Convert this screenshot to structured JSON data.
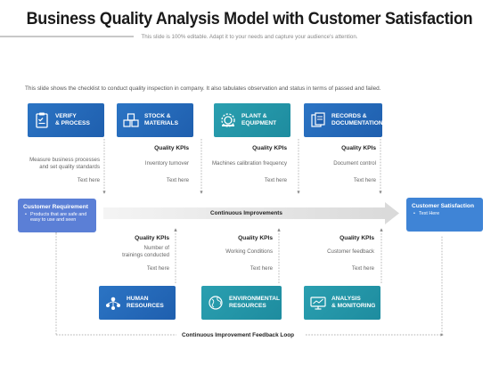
{
  "title": "Business Quality Analysis Model with Customer Satisfaction",
  "subtitle": "This slide is 100% editable. Adapt it to your needs and capture your audience's attention.",
  "description": "This slide shows the checklist to conduct quality inspection in company. It also tabulates observation and status in terms of passed and failed.",
  "top_cards": [
    {
      "label": "VERIFY\n& PROCESS",
      "icon": "clipboard-check-icon",
      "color": "#2366b5"
    },
    {
      "label": "STOCK &\nMATERIALS",
      "icon": "boxes-icon",
      "color": "#2366b5"
    },
    {
      "label": "PLANT &\nEQUIPMENT",
      "icon": "gear-icon",
      "color": "#2295a8"
    },
    {
      "label": "RECORDS &\nDOCUMENTATION",
      "icon": "documents-icon",
      "color": "#2366b5"
    }
  ],
  "top_kpis": [
    {
      "heading": "",
      "item": "Measure business processes\nand set quality standards",
      "note": "Text here"
    },
    {
      "heading": "Quality KPIs",
      "item": "Inventory turnover",
      "note": "Text here"
    },
    {
      "heading": "Quality KPIs",
      "item": "Machines calibration frequency",
      "note": "Text here"
    },
    {
      "heading": "Quality KPIs",
      "item": "Document control",
      "note": "Text here"
    }
  ],
  "left_box": {
    "heading": "Customer Requirement",
    "bullet": "Products that are safe and easy to use and seen"
  },
  "right_box": {
    "heading": "Customer Satisfaction",
    "bullet": "Text Here"
  },
  "center_arrow_label": "Continuous Improvements",
  "bottom_kpis": [
    {
      "heading": "Quality KPIs",
      "item": "Number of\ntrainings conducted",
      "note": "Text here"
    },
    {
      "heading": "Quality KPIs",
      "item": "Working Conditions",
      "note": "Text here"
    },
    {
      "heading": "Quality KPIs",
      "item": "Customer feedback",
      "note": "Text here"
    }
  ],
  "bottom_cards": [
    {
      "label": "HUMAN\nRESOURCES",
      "icon": "people-network-icon",
      "color": "#2366b5"
    },
    {
      "label": "ENVIRONMENTAL\nRESOURCES",
      "icon": "globe-icon",
      "color": "#2295a8"
    },
    {
      "label": "ANALYSIS\n& MONITORING",
      "icon": "monitor-icon",
      "color": "#2295a8"
    }
  ],
  "feedback_loop_label": "Continuous Improvement Feedback Loop"
}
